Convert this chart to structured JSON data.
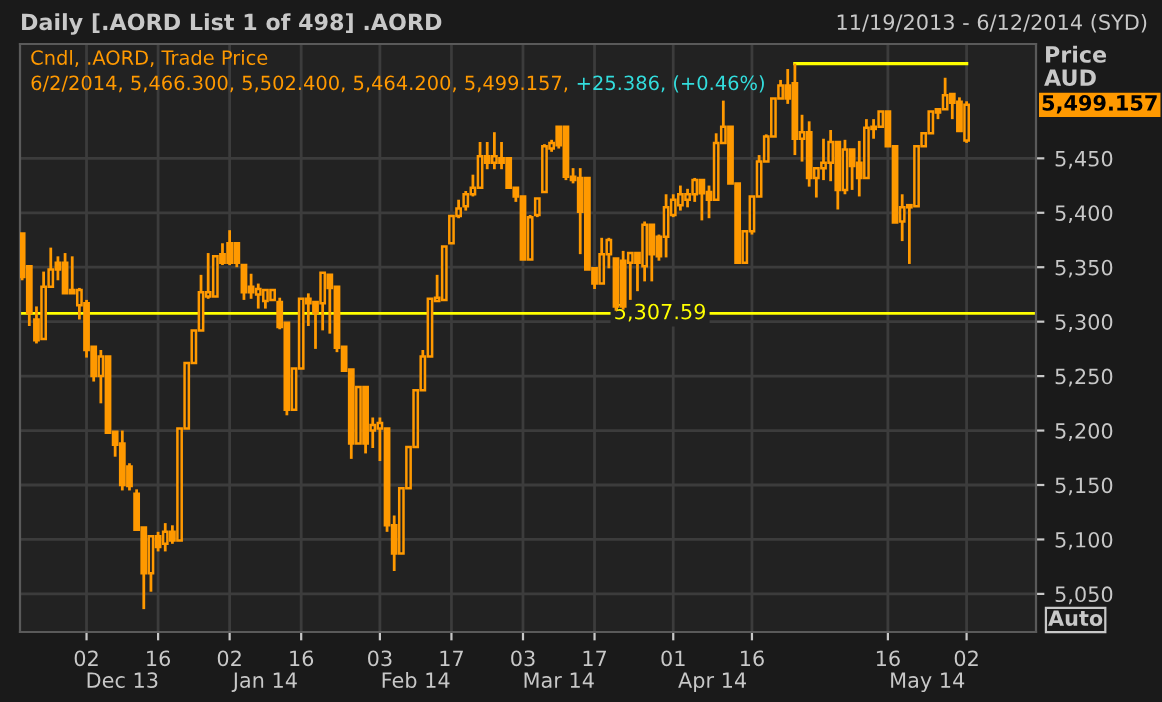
{
  "chart_data": {
    "type": "candlestick",
    "title": "Daily [.AORD List 1 of 498] .AORD",
    "subtitle": "11/19/2013 - 6/12/2014 (SYD)",
    "ylabel": "Price AUD",
    "categories": [
      null,
      null,
      null,
      null,
      null,
      null,
      null,
      null,
      null,
      "02",
      null,
      null,
      null,
      null,
      null,
      null,
      null,
      null,
      null,
      "16",
      null,
      null,
      null,
      null,
      null,
      null,
      null,
      null,
      null,
      "02",
      null,
      null,
      null,
      null,
      null,
      null,
      null,
      null,
      null,
      "16",
      null,
      null,
      null,
      null,
      null,
      null,
      null,
      null,
      null,
      null,
      "03",
      null,
      null,
      null,
      null,
      null,
      null,
      null,
      null,
      null,
      "17",
      null,
      null,
      null,
      null,
      null,
      null,
      null,
      null,
      null,
      "03",
      null,
      null,
      null,
      null,
      null,
      null,
      null,
      null,
      null,
      "17",
      null,
      null,
      null,
      null,
      null,
      null,
      null,
      null,
      null,
      null,
      "01",
      null,
      null,
      null,
      null,
      null,
      null,
      null,
      null,
      null,
      null,
      "16",
      null,
      null,
      null,
      null,
      null,
      null,
      null,
      null,
      null,
      null,
      null,
      null,
      null,
      null,
      null,
      null,
      null,
      null,
      "16",
      null,
      null,
      null,
      null,
      null,
      null,
      null,
      null,
      null,
      null,
      "02"
    ],
    "series": [
      {
        "name": "Cndl, .AORD, Trade Price",
        "color": "#ff9900",
        "ohlc": [
          [
            5381,
            5381,
            5338,
            5341
          ],
          [
            5351,
            5351,
            5296,
            5308
          ],
          [
            5302,
            5314,
            5280,
            5283
          ],
          [
            5284,
            5346,
            5284,
            5332
          ],
          [
            5332,
            5368,
            5332,
            5348
          ],
          [
            5354,
            5360,
            5338,
            5348
          ],
          [
            5354,
            5363,
            5326,
            5326
          ],
          [
            5329,
            5360,
            5326,
            5326
          ],
          [
            5315,
            5331,
            5302,
            5329
          ],
          [
            5317,
            5320,
            5267,
            5274
          ],
          [
            5277,
            5277,
            5245,
            5250
          ],
          [
            5250,
            5274,
            5225,
            5268
          ],
          [
            5268,
            5268,
            5198,
            5198
          ],
          [
            5199,
            5199,
            5176,
            5187
          ],
          [
            5188,
            5200,
            5145,
            5150
          ],
          [
            5167,
            5170,
            5145,
            5149
          ],
          [
            5142,
            5146,
            5109,
            5109
          ],
          [
            5111,
            5111,
            5036,
            5069
          ],
          [
            5069,
            5103,
            5052,
            5103
          ],
          [
            5103,
            5107,
            5089,
            5093
          ],
          [
            5096,
            5115,
            5089,
            5107
          ],
          [
            5107,
            5113,
            5096,
            5099
          ],
          [
            5099,
            5202,
            5099,
            5202
          ],
          [
            5202,
            5262,
            5202,
            5262
          ],
          [
            5262,
            5292,
            5262,
            5292
          ],
          [
            5292,
            5343,
            5292,
            5327
          ],
          [
            5323,
            5363,
            5321,
            5327
          ],
          [
            5323,
            5360,
            5323,
            5360
          ],
          [
            5362,
            5372,
            5352,
            5354
          ],
          [
            5372,
            5384,
            5352,
            5354
          ],
          [
            5372,
            5372,
            5350,
            5354
          ],
          [
            5352,
            5352,
            5320,
            5327
          ],
          [
            5332,
            5344,
            5321,
            5327
          ],
          [
            5325,
            5335,
            5312,
            5330
          ],
          [
            5319,
            5329,
            5312,
            5329
          ],
          [
            5320,
            5329,
            5320,
            5329
          ],
          [
            5318,
            5322,
            5293,
            5295
          ],
          [
            5299,
            5299,
            5214,
            5219
          ],
          [
            5219,
            5257,
            5219,
            5257
          ],
          [
            5257,
            5321,
            5257,
            5321
          ],
          [
            5321,
            5326,
            5296,
            5317
          ],
          [
            5318,
            5318,
            5275,
            5308
          ],
          [
            5317,
            5345,
            5292,
            5345
          ],
          [
            5343,
            5343,
            5289,
            5331
          ],
          [
            5332,
            5332,
            5272,
            5276
          ],
          [
            5277,
            5277,
            5255,
            5255
          ],
          [
            5256,
            5256,
            5174,
            5188
          ],
          [
            5188,
            5240,
            5188,
            5240
          ],
          [
            5240,
            5240,
            5179,
            5188
          ],
          [
            5200,
            5212,
            5184,
            5205
          ],
          [
            5202,
            5212,
            5172,
            5207
          ],
          [
            5202,
            5202,
            5107,
            5113
          ],
          [
            5113,
            5122,
            5071,
            5087
          ],
          [
            5087,
            5147,
            5087,
            5147
          ],
          [
            5147,
            5185,
            5147,
            5185
          ],
          [
            5185,
            5237,
            5185,
            5237
          ],
          [
            5237,
            5274,
            5237,
            5268
          ],
          [
            5268,
            5321,
            5268,
            5321
          ],
          [
            5319,
            5343,
            5319,
            5322
          ],
          [
            5320,
            5369,
            5320,
            5369
          ],
          [
            5372,
            5397,
            5372,
            5397
          ],
          [
            5397,
            5412,
            5395,
            5404
          ],
          [
            5406,
            5420,
            5402,
            5417
          ],
          [
            5417,
            5435,
            5415,
            5423
          ],
          [
            5423,
            5465,
            5423,
            5452
          ],
          [
            5452,
            5465,
            5440,
            5446
          ],
          [
            5446,
            5474,
            5440,
            5452
          ],
          [
            5450,
            5465,
            5440,
            5446
          ],
          [
            5450,
            5450,
            5423,
            5423
          ],
          [
            5423,
            5423,
            5410,
            5415
          ],
          [
            5415,
            5415,
            5357,
            5357
          ],
          [
            5357,
            5398,
            5357,
            5396
          ],
          [
            5398,
            5413,
            5396,
            5413
          ],
          [
            5419,
            5463,
            5419,
            5461
          ],
          [
            5459,
            5467,
            5456,
            5464
          ],
          [
            5479,
            5479,
            5459,
            5462
          ],
          [
            5479,
            5479,
            5430,
            5433
          ],
          [
            5433,
            5441,
            5427,
            5430
          ],
          [
            5432,
            5441,
            5362,
            5401
          ],
          [
            5432,
            5432,
            5348,
            5348
          ],
          [
            5349,
            5349,
            5330,
            5335
          ],
          [
            5335,
            5377,
            5335,
            5362
          ],
          [
            5362,
            5377,
            5349,
            5375
          ],
          [
            5358,
            5358,
            5310,
            5314
          ],
          [
            5356,
            5365,
            5311,
            5314
          ],
          [
            5354,
            5363,
            5320,
            5363
          ],
          [
            5363,
            5363,
            5328,
            5354
          ],
          [
            5351,
            5392,
            5337,
            5389
          ],
          [
            5389,
            5389,
            5337,
            5362
          ],
          [
            5378,
            5380,
            5356,
            5360
          ],
          [
            5378,
            5417,
            5359,
            5405
          ],
          [
            5398,
            5417,
            5396,
            5412
          ],
          [
            5407,
            5425,
            5402,
            5417
          ],
          [
            5412,
            5422,
            5405,
            5417
          ],
          [
            5417,
            5432,
            5410,
            5430
          ],
          [
            5430,
            5430,
            5393,
            5418
          ],
          [
            5419,
            5425,
            5395,
            5412
          ],
          [
            5412,
            5473,
            5412,
            5464
          ],
          [
            5464,
            5503,
            5464,
            5479
          ],
          [
            5479,
            5479,
            5427,
            5427
          ],
          [
            5427,
            5427,
            5354,
            5354
          ],
          [
            5354,
            5383,
            5354,
            5383
          ],
          [
            5383,
            5415,
            5380,
            5415
          ],
          [
            5415,
            5453,
            5415,
            5447
          ],
          [
            5447,
            5472,
            5447,
            5470
          ],
          [
            5470,
            5505,
            5470,
            5505
          ],
          [
            5505,
            5522,
            5505,
            5517
          ],
          [
            5517,
            5532,
            5500,
            5505
          ],
          [
            5519,
            5537,
            5453,
            5468
          ],
          [
            5468,
            5490,
            5447,
            5474
          ],
          [
            5474,
            5484,
            5424,
            5432
          ],
          [
            5432,
            5441,
            5414,
            5441
          ],
          [
            5441,
            5468,
            5430,
            5446
          ],
          [
            5446,
            5476,
            5429,
            5465
          ],
          [
            5465,
            5465,
            5403,
            5421
          ],
          [
            5421,
            5467,
            5417,
            5458
          ],
          [
            5458,
            5458,
            5421,
            5443
          ],
          [
            5446,
            5466,
            5415,
            5432
          ],
          [
            5432,
            5486,
            5432,
            5478
          ],
          [
            5477,
            5486,
            5468,
            5479
          ],
          [
            5479,
            5493,
            5479,
            5493
          ],
          [
            5493,
            5493,
            5461,
            5461
          ],
          [
            5461,
            5461,
            5391,
            5391
          ],
          [
            5392,
            5417,
            5374,
            5405
          ],
          [
            5407,
            5407,
            5353,
            5405
          ],
          [
            5406,
            5461,
            5406,
            5461
          ],
          [
            5461,
            5473,
            5461,
            5473
          ],
          [
            5473,
            5493,
            5473,
            5493
          ],
          [
            5495,
            5495,
            5486,
            5492
          ],
          [
            5495,
            5524,
            5495,
            5508
          ],
          [
            5509,
            5509,
            5486,
            5501
          ],
          [
            5502,
            5506,
            5475,
            5475
          ],
          [
            5466.3,
            5502.4,
            5464.2,
            5499.157
          ]
        ]
      },
      {
        "type": "line",
        "color": "#ffff00",
        "values": [
          null,
          null,
          null,
          null,
          null,
          null,
          null,
          null,
          null,
          null,
          null,
          null,
          null,
          null,
          null,
          null,
          null,
          null,
          null,
          null,
          null,
          null,
          null,
          null,
          null,
          null,
          null,
          null,
          null,
          null,
          null,
          null,
          null,
          null,
          null,
          null,
          null,
          null,
          null,
          null,
          null,
          null,
          null,
          null,
          null,
          null,
          null,
          null,
          null,
          null,
          null,
          null,
          null,
          null,
          null,
          null,
          null,
          null,
          null,
          null,
          null,
          null,
          null,
          null,
          null,
          null,
          null,
          null,
          null,
          null,
          null,
          null,
          null,
          null,
          null,
          null,
          null,
          null,
          null,
          null,
          null,
          null,
          null,
          null,
          null,
          null,
          null,
          null,
          null,
          null,
          null,
          null,
          null,
          null,
          null,
          null,
          null,
          null,
          null,
          null,
          null,
          null,
          null,
          null,
          null,
          null,
          null,
          null,
          5537,
          5537,
          5537,
          5537,
          5537,
          5537,
          5537,
          5537,
          5537,
          5537,
          5537,
          5537,
          5537,
          5537,
          5537,
          5537,
          5537,
          5537,
          5537,
          5537,
          5537,
          5537,
          5537,
          5537,
          5537
        ]
      }
    ],
    "ylim": [
      5015,
      5555
    ],
    "yticks": [
      {
        "value": 5050,
        "label": "5,050"
      },
      {
        "value": 5100,
        "label": "5,100"
      },
      {
        "value": 5150,
        "label": "5,150"
      },
      {
        "value": 5200,
        "label": "5,200"
      },
      {
        "value": 5250,
        "label": "5,250"
      },
      {
        "value": 5300,
        "label": "5,300"
      },
      {
        "value": 5350,
        "label": "5,350"
      },
      {
        "value": 5400,
        "label": "5,400"
      },
      {
        "value": 5450,
        "label": "5,450"
      }
    ],
    "ref_lines": [
      {
        "axis": "y",
        "value": 5307.59,
        "label": "5,307.59",
        "color": "#ffff00"
      }
    ],
    "annotations": [
      "6/2/2014, 5,466.300, 5,502.400, 5,464.200, 5,499.157,",
      "+25.386, (+0.46%)",
      "Dec 13",
      "Jan 14",
      "Feb 14",
      "Mar 14",
      "Apr 14",
      "May 14",
      "5,499.157",
      "Auto"
    ],
    "grid": true,
    "legend": "top left"
  }
}
